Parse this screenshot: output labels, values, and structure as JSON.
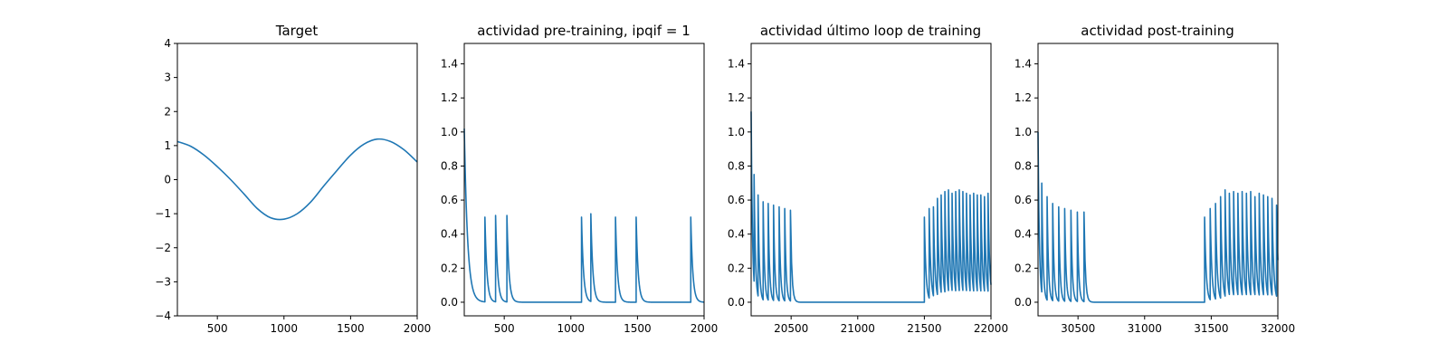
{
  "chart_data": [
    {
      "type": "line",
      "title": "Target",
      "xlabel": "",
      "ylabel": "",
      "xlim": [
        200,
        2000
      ],
      "ylim": [
        -4,
        4
      ],
      "xticks": [
        500,
        1000,
        1500,
        2000
      ],
      "yticks": [
        -4,
        -3,
        -2,
        -1,
        0,
        1,
        2,
        3,
        4
      ],
      "ytick_labels": [
        "−4",
        "−3",
        "−2",
        "−1",
        "0",
        "1",
        "2",
        "3",
        "4"
      ],
      "series": [
        {
          "x": [
            200,
            300,
            400,
            500,
            600,
            700,
            800,
            900,
            1000,
            1100,
            1200,
            1300,
            1400,
            1500,
            1600,
            1700,
            1800,
            1900,
            2000
          ],
          "y": [
            1.12,
            0.98,
            0.72,
            0.38,
            0.0,
            -0.42,
            -0.85,
            -1.12,
            -1.16,
            -1.0,
            -0.66,
            -0.18,
            0.28,
            0.72,
            1.04,
            1.19,
            1.12,
            0.88,
            0.52
          ]
        }
      ],
      "grid": false
    },
    {
      "type": "line",
      "title": "actividad pre-training, ipqif = 1",
      "xlabel": "",
      "ylabel": "",
      "xlim": [
        200,
        2000
      ],
      "ylim": [
        -0.08,
        1.52
      ],
      "xticks": [
        500,
        1000,
        1500,
        2000
      ],
      "yticks": [
        0.0,
        0.2,
        0.4,
        0.6,
        0.8,
        1.0,
        1.2,
        1.4
      ],
      "ytick_labels": [
        "0.0",
        "0.2",
        "0.4",
        "0.6",
        "0.8",
        "1.0",
        "1.2",
        "1.4"
      ],
      "series": [
        {
          "spikes": [
            {
              "t": 200,
              "peak": 1.02,
              "tau": 25,
              "end": 355
            },
            {
              "t": 355,
              "peak": 0.5,
              "tau": 15,
              "end": 435
            },
            {
              "t": 435,
              "peak": 0.51,
              "tau": 15,
              "end": 520
            },
            {
              "t": 520,
              "peak": 0.51,
              "tau": 15,
              "end": 1080
            },
            {
              "t": 1080,
              "peak": 0.5,
              "tau": 15,
              "end": 1150
            },
            {
              "t": 1150,
              "peak": 0.52,
              "tau": 15,
              "end": 1335
            },
            {
              "t": 1335,
              "peak": 0.5,
              "tau": 15,
              "end": 1490
            },
            {
              "t": 1490,
              "peak": 0.5,
              "tau": 15,
              "end": 1900
            },
            {
              "t": 1900,
              "peak": 0.5,
              "tau": 15,
              "end": 2000
            }
          ]
        }
      ],
      "grid": false
    },
    {
      "type": "line",
      "title": "actividad último loop de training",
      "xlabel": "",
      "ylabel": "",
      "xlim": [
        20200,
        22000
      ],
      "ylim": [
        -0.08,
        1.52
      ],
      "xticks": [
        20500,
        21000,
        21500,
        22000
      ],
      "yticks": [
        0.0,
        0.2,
        0.4,
        0.6,
        0.8,
        1.0,
        1.2,
        1.4
      ],
      "ytick_labels": [
        "0.0",
        "0.2",
        "0.4",
        "0.6",
        "0.8",
        "1.0",
        "1.2",
        "1.4"
      ],
      "series": [
        {
          "spikes": [
            {
              "t": 20200,
              "peak": 1.12,
              "tau": 10,
              "end": 20222
            },
            {
              "t": 20222,
              "peak": 0.75,
              "tau": 10,
              "end": 20252
            },
            {
              "t": 20252,
              "peak": 0.63,
              "tau": 10,
              "end": 20290
            },
            {
              "t": 20290,
              "peak": 0.59,
              "tau": 10,
              "end": 20328
            },
            {
              "t": 20328,
              "peak": 0.58,
              "tau": 10,
              "end": 20368
            },
            {
              "t": 20368,
              "peak": 0.57,
              "tau": 10,
              "end": 20410
            },
            {
              "t": 20410,
              "peak": 0.56,
              "tau": 10,
              "end": 20452
            },
            {
              "t": 20452,
              "peak": 0.55,
              "tau": 10,
              "end": 20495
            },
            {
              "t": 20495,
              "peak": 0.54,
              "tau": 10,
              "end": 21500
            },
            {
              "t": 21500,
              "peak": 0.5,
              "tau": 12,
              "end": 21536
            },
            {
              "t": 21536,
              "peak": 0.55,
              "tau": 12,
              "end": 21568
            },
            {
              "t": 21568,
              "peak": 0.56,
              "tau": 12,
              "end": 21598
            },
            {
              "t": 21598,
              "peak": 0.61,
              "tau": 12,
              "end": 21626
            },
            {
              "t": 21626,
              "peak": 0.63,
              "tau": 12,
              "end": 21654
            },
            {
              "t": 21654,
              "peak": 0.65,
              "tau": 12,
              "end": 21681
            },
            {
              "t": 21681,
              "peak": 0.66,
              "tau": 12,
              "end": 21708
            },
            {
              "t": 21708,
              "peak": 0.64,
              "tau": 12,
              "end": 21735
            },
            {
              "t": 21735,
              "peak": 0.65,
              "tau": 12,
              "end": 21762
            },
            {
              "t": 21762,
              "peak": 0.66,
              "tau": 12,
              "end": 21789
            },
            {
              "t": 21789,
              "peak": 0.65,
              "tau": 12,
              "end": 21816
            },
            {
              "t": 21816,
              "peak": 0.64,
              "tau": 12,
              "end": 21843
            },
            {
              "t": 21843,
              "peak": 0.63,
              "tau": 12,
              "end": 21870
            },
            {
              "t": 21870,
              "peak": 0.64,
              "tau": 12,
              "end": 21897
            },
            {
              "t": 21897,
              "peak": 0.63,
              "tau": 12,
              "end": 21924
            },
            {
              "t": 21924,
              "peak": 0.63,
              "tau": 12,
              "end": 21951
            },
            {
              "t": 21951,
              "peak": 0.62,
              "tau": 12,
              "end": 21978
            },
            {
              "t": 21978,
              "peak": 0.64,
              "tau": 12,
              "end": 22000
            }
          ]
        }
      ],
      "grid": false
    },
    {
      "type": "line",
      "title": "actividad post-training",
      "xlabel": "",
      "ylabel": "",
      "xlim": [
        30200,
        32000
      ],
      "ylim": [
        -0.08,
        1.52
      ],
      "xticks": [
        30500,
        31000,
        31500,
        32000
      ],
      "yticks": [
        0.0,
        0.2,
        0.4,
        0.6,
        0.8,
        1.0,
        1.2,
        1.4
      ],
      "ytick_labels": [
        "0.0",
        "0.2",
        "0.4",
        "0.6",
        "0.8",
        "1.0",
        "1.2",
        "1.4"
      ],
      "series": [
        {
          "spikes": [
            {
              "t": 30200,
              "peak": 1.0,
              "tau": 10,
              "end": 30228
            },
            {
              "t": 30228,
              "peak": 0.7,
              "tau": 10,
              "end": 30268
            },
            {
              "t": 30268,
              "peak": 0.62,
              "tau": 10,
              "end": 30310
            },
            {
              "t": 30310,
              "peak": 0.58,
              "tau": 10,
              "end": 30355
            },
            {
              "t": 30355,
              "peak": 0.56,
              "tau": 10,
              "end": 30400
            },
            {
              "t": 30400,
              "peak": 0.55,
              "tau": 10,
              "end": 30447
            },
            {
              "t": 30447,
              "peak": 0.54,
              "tau": 10,
              "end": 30495
            },
            {
              "t": 30495,
              "peak": 0.53,
              "tau": 10,
              "end": 30545
            },
            {
              "t": 30545,
              "peak": 0.53,
              "tau": 10,
              "end": 31450
            },
            {
              "t": 31450,
              "peak": 0.5,
              "tau": 12,
              "end": 31492
            },
            {
              "t": 31492,
              "peak": 0.55,
              "tau": 12,
              "end": 31532
            },
            {
              "t": 31532,
              "peak": 0.58,
              "tau": 12,
              "end": 31570
            },
            {
              "t": 31570,
              "peak": 0.62,
              "tau": 12,
              "end": 31604
            },
            {
              "t": 31604,
              "peak": 0.66,
              "tau": 12,
              "end": 31636
            },
            {
              "t": 31636,
              "peak": 0.64,
              "tau": 12,
              "end": 31668
            },
            {
              "t": 31668,
              "peak": 0.65,
              "tau": 12,
              "end": 31700
            },
            {
              "t": 31700,
              "peak": 0.64,
              "tau": 12,
              "end": 31732
            },
            {
              "t": 31732,
              "peak": 0.65,
              "tau": 12,
              "end": 31764
            },
            {
              "t": 31764,
              "peak": 0.64,
              "tau": 12,
              "end": 31796
            },
            {
              "t": 31796,
              "peak": 0.65,
              "tau": 12,
              "end": 31828
            },
            {
              "t": 31828,
              "peak": 0.62,
              "tau": 12,
              "end": 31860
            },
            {
              "t": 31860,
              "peak": 0.64,
              "tau": 12,
              "end": 31892
            },
            {
              "t": 31892,
              "peak": 0.63,
              "tau": 12,
              "end": 31924
            },
            {
              "t": 31924,
              "peak": 0.62,
              "tau": 12,
              "end": 31956
            },
            {
              "t": 31956,
              "peak": 0.61,
              "tau": 12,
              "end": 31990
            },
            {
              "t": 31990,
              "peak": 0.57,
              "tau": 12,
              "end": 32000
            }
          ]
        }
      ],
      "grid": false
    }
  ],
  "colors": {
    "line": "#1f77b4",
    "axes": "#000000",
    "background": "#ffffff"
  }
}
